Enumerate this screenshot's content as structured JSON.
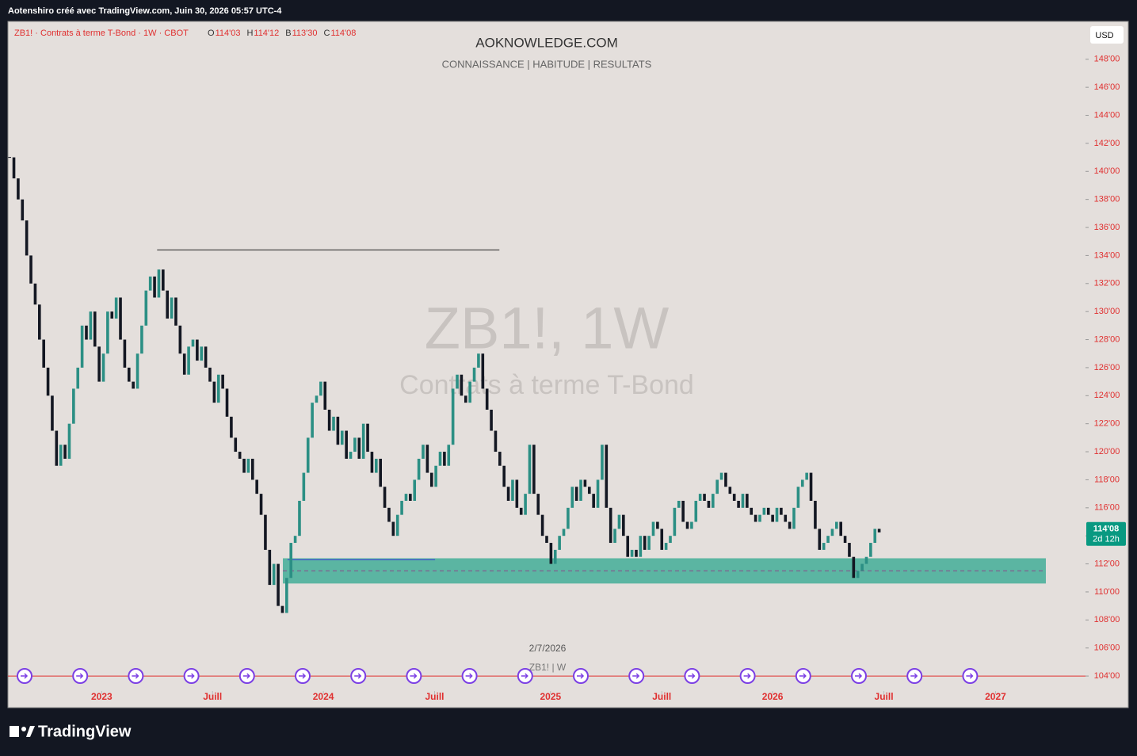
{
  "header": "Aotenshiro créé avec TradingView.com, Juin 30, 2026 05:57 UTC-4",
  "footer_brand": "TradingView",
  "chart_data": {
    "type": "candlestick",
    "title": "AOKNOWLEDGE.COM",
    "subtitle": "CONNAISSANCE |  HABITUDE | RESULTATS",
    "watermark": "ZB1!, 1W",
    "watermark_subtitle": "Contrats à terme T-Bond",
    "symbol_info": "ZB1! · Contrats à terme T-Bond · 1W · CBOT",
    "ohlc": [
      {
        "label": "O",
        "value": "114'03"
      },
      {
        "label": "H",
        "value": "114'12"
      },
      {
        "label": "B",
        "value": "113'30"
      },
      {
        "label": "C",
        "value": "114'08"
      }
    ],
    "currency": "USD",
    "last_price": {
      "value": 114.25,
      "label": "114'08"
    },
    "countdown": "2d 12h",
    "cursor_date": "2/7/2026",
    "cursor_symbol": "ZB1! | W",
    "up_color": "#2b8f84",
    "down_color": "#131722",
    "values": [
      141,
      139.5,
      138,
      136.5,
      134,
      132,
      130.5,
      128,
      126,
      124,
      121.5,
      119,
      120.5,
      119.5,
      122,
      124.5,
      126,
      129,
      128,
      130,
      127.5,
      125,
      127,
      130,
      129.5,
      131,
      128,
      126,
      125,
      124.5,
      127,
      129,
      131.5,
      132.5,
      131,
      133,
      131.5,
      129.5,
      131,
      129,
      127,
      125.5,
      127.5,
      128,
      126.5,
      127.5,
      126,
      125,
      123.5,
      125.5,
      124.5,
      122.5,
      121,
      120,
      119.5,
      118.5,
      119.5,
      118,
      117,
      115.5,
      113,
      110.5,
      112,
      109,
      108.5,
      111,
      113.5,
      114,
      116.5,
      118.5,
      121,
      123.5,
      124,
      125,
      123,
      121.5,
      122.5,
      120.5,
      121.5,
      119.5,
      120,
      121,
      119.5,
      122,
      120,
      118.5,
      119.5,
      117.5,
      116,
      115,
      114,
      115.5,
      116.5,
      117,
      116.5,
      118,
      119.5,
      120.5,
      118.5,
      117.5,
      119,
      120,
      119,
      120.5,
      124.5,
      125.5,
      124,
      123.5,
      125,
      126,
      127,
      124.5,
      123,
      121.5,
      120,
      119,
      117.5,
      116.5,
      118,
      116,
      115.5,
      117,
      120.5,
      117,
      115.5,
      114,
      113.5,
      112,
      113,
      114,
      114.5,
      116,
      117.5,
      116.5,
      118,
      117.5,
      117,
      116,
      118,
      120.5,
      116,
      113.5,
      114.5,
      115.5,
      114,
      112.5,
      113,
      112.5,
      114,
      113,
      114,
      115,
      114.5,
      113,
      113.5,
      114,
      116,
      116.5,
      115,
      114.5,
      115,
      116.5,
      117,
      116.5,
      116,
      117,
      118,
      118.5,
      117.5,
      117,
      116.5,
      116,
      117,
      116,
      115.5,
      115,
      115.5,
      116,
      115.5,
      115,
      116,
      115.5,
      115,
      114.5,
      116,
      117.5,
      118,
      118.5,
      116.5,
      114.5,
      113,
      113.5,
      114,
      114.5,
      115,
      114,
      113.5,
      112.5,
      111,
      111.5,
      112,
      112.5,
      113.5,
      114.5,
      114.25
    ],
    "xlim": [
      -0.4,
      252.4
    ],
    "ylim": [
      101.8,
      150.7
    ],
    "xticks": [
      {
        "value": 21.6,
        "label": "2023"
      },
      {
        "value": 47.6,
        "label": "Juill"
      },
      {
        "value": 73.6,
        "label": "2024"
      },
      {
        "value": 99.7,
        "label": "Juill"
      },
      {
        "value": 126.9,
        "label": "2025"
      },
      {
        "value": 153,
        "label": "Juill"
      },
      {
        "value": 179,
        "label": "2026"
      },
      {
        "value": 205.1,
        "label": "Juill"
      },
      {
        "value": 231.3,
        "label": "2027"
      }
    ],
    "yticks": [
      {
        "value": 148,
        "label": "148'00"
      },
      {
        "value": 146,
        "label": "146'00"
      },
      {
        "value": 144,
        "label": "144'00"
      },
      {
        "value": 142,
        "label": "142'00"
      },
      {
        "value": 140,
        "label": "140'00"
      },
      {
        "value": 138,
        "label": "138'00"
      },
      {
        "value": 136,
        "label": "136'00"
      },
      {
        "value": 134,
        "label": "134'00"
      },
      {
        "value": 132,
        "label": "132'00"
      },
      {
        "value": 130,
        "label": "130'00"
      },
      {
        "value": 128,
        "label": "128'00"
      },
      {
        "value": 126,
        "label": "126'00"
      },
      {
        "value": 124,
        "label": "124'00"
      },
      {
        "value": 122,
        "label": "122'00"
      },
      {
        "value": 120,
        "label": "120'00"
      },
      {
        "value": 118,
        "label": "118'00"
      },
      {
        "value": 116,
        "label": "116'00"
      },
      {
        "value": 114,
        "label": "114'00"
      },
      {
        "value": 112,
        "label": "112'00"
      },
      {
        "value": 110,
        "label": "110'00"
      },
      {
        "value": 108,
        "label": "108'00"
      },
      {
        "value": 106,
        "label": "106'00"
      },
      {
        "value": 104,
        "label": "104'00"
      }
    ],
    "level_line": {
      "value": 134.4,
      "from": 34.6,
      "to": 114.9
    },
    "zone": {
      "low": 110.6,
      "high": 112.4,
      "mid": 111.5,
      "from": 64.1,
      "to": 243.1,
      "color": "#5bb5a2"
    },
    "blue_line": {
      "value": 112.3,
      "from": 65.2,
      "to": 99.8
    },
    "red_line": 104
  }
}
